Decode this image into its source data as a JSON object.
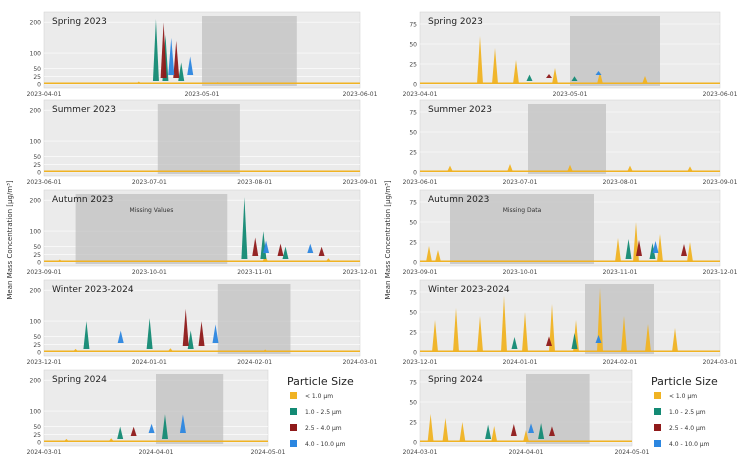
{
  "legend": {
    "title": "Particle Size",
    "items": [
      {
        "label": "< 1.0 µm",
        "color": "#f0b323"
      },
      {
        "label": "1.0 - 2.5 µm",
        "color": "#138a74"
      },
      {
        "label": "2.5 - 4.0 µm",
        "color": "#8f1a1a"
      },
      {
        "label": "4.0 - 10.0 µm",
        "color": "#2b86e0"
      }
    ]
  },
  "ylabel": "Mean Mass Concentration [µg/m³]",
  "chart_data": [
    {
      "type": "area",
      "panel": "left",
      "title": "Spring 2023",
      "ylim": [
        0,
        220
      ],
      "yticks": [
        0,
        25,
        50,
        100,
        200
      ],
      "xticks": [
        "2023-04-01",
        "2023-05-01",
        "2023-06-01"
      ],
      "shaded_range": [
        0.5,
        0.8
      ],
      "annotation": "",
      "series_peaks": [
        {
          "name": "< 1.0 µm",
          "peaks": [
            [
              0.3,
              8
            ],
            [
              0.55,
              6
            ],
            [
              0.8,
              5
            ]
          ]
        },
        {
          "name": "1.0 - 2.5 µm",
          "peaks": [
            [
              0.34,
              200
            ],
            [
              0.37,
              150
            ],
            [
              0.42,
              60
            ]
          ]
        },
        {
          "name": "2.5 - 4.0 µm",
          "peaks": [
            [
              0.35,
              180
            ],
            [
              0.39,
              120
            ]
          ]
        },
        {
          "name": "4.0 - 10.0 µm",
          "peaks": [
            [
              0.36,
              120
            ],
            [
              0.42,
              60
            ]
          ]
        }
      ]
    },
    {
      "type": "area",
      "panel": "left",
      "title": "Summer 2023",
      "ylim": [
        0,
        220
      ],
      "yticks": [
        0,
        25,
        50,
        100,
        200
      ],
      "xticks": [
        "2023-06-01",
        "2023-07-01",
        "2023-08-01",
        "2023-09-01"
      ],
      "shaded_range": [
        0.36,
        0.62
      ],
      "annotation": "",
      "series_peaks": [
        {
          "name": "< 1.0 µm",
          "peaks": [
            [
              0.2,
              5
            ],
            [
              0.5,
              6
            ],
            [
              0.8,
              4
            ]
          ]
        },
        {
          "name": "1.0 - 2.5 µm",
          "peaks": []
        },
        {
          "name": "2.5 - 4.0 µm",
          "peaks": []
        },
        {
          "name": "4.0 - 10.0 µm",
          "peaks": []
        }
      ]
    },
    {
      "type": "area",
      "panel": "left",
      "title": "Autumn 2023",
      "ylim": [
        0,
        220
      ],
      "yticks": [
        0,
        25,
        50,
        100,
        200
      ],
      "xticks": [
        "2023-09-01",
        "2023-10-01",
        "2023-11-01",
        "2023-12-01"
      ],
      "shaded_range": [
        0.1,
        0.58
      ],
      "annotation": "Missing Values",
      "series_peaks": [
        {
          "name": "< 1.0 µm",
          "peaks": [
            [
              0.05,
              8
            ],
            [
              0.7,
              20
            ],
            [
              0.9,
              12
            ]
          ]
        },
        {
          "name": "1.0 - 2.5 µm",
          "peaks": [
            [
              0.62,
              200
            ],
            [
              0.68,
              90
            ],
            [
              0.75,
              40
            ]
          ]
        },
        {
          "name": "2.5 - 4.0 µm",
          "peaks": [
            [
              0.64,
              60
            ],
            [
              0.72,
              40
            ],
            [
              0.85,
              30
            ]
          ]
        },
        {
          "name": "4.0 - 10.0 µm",
          "peaks": [
            [
              0.66,
              40
            ],
            [
              0.8,
              30
            ]
          ]
        }
      ]
    },
    {
      "type": "area",
      "panel": "left",
      "title": "Winter 2023-2024",
      "ylim": [
        0,
        220
      ],
      "yticks": [
        0,
        25,
        50,
        100,
        200
      ],
      "xticks": [
        "2023-12-01",
        "2024-01-01",
        "2024-02-01",
        "2024-03-01"
      ],
      "shaded_range": [
        0.55,
        0.78
      ],
      "annotation": "",
      "series_peaks": [
        {
          "name": "< 1.0 µm",
          "peaks": [
            [
              0.1,
              10
            ],
            [
              0.4,
              12
            ],
            [
              0.7,
              8
            ]
          ]
        },
        {
          "name": "1.0 - 2.5 µm",
          "peaks": [
            [
              0.12,
              90
            ],
            [
              0.32,
              100
            ],
            [
              0.45,
              60
            ]
          ]
        },
        {
          "name": "2.5 - 4.0 µm",
          "peaks": [
            [
              0.42,
              120
            ],
            [
              0.47,
              80
            ]
          ]
        },
        {
          "name": "4.0 - 10.0 µm",
          "peaks": [
            [
              0.2,
              40
            ],
            [
              0.5,
              60
            ]
          ]
        }
      ]
    },
    {
      "type": "area",
      "panel": "left",
      "title": "Spring 2024",
      "ylim": [
        0,
        220
      ],
      "yticks": [
        0,
        25,
        50,
        100,
        200
      ],
      "xticks": [
        "2024-03-01",
        "2024-04-01",
        "2024-05-01"
      ],
      "shaded_range": [
        0.5,
        0.8
      ],
      "annotation": "",
      "series_peaks": [
        {
          "name": "< 1.0 µm",
          "peaks": [
            [
              0.1,
              10
            ],
            [
              0.3,
              12
            ]
          ]
        },
        {
          "name": "1.0 - 2.5 µm",
          "peaks": [
            [
              0.32,
              40
            ],
            [
              0.52,
              80
            ]
          ]
        },
        {
          "name": "2.5 - 4.0 µm",
          "peaks": [
            [
              0.36,
              30
            ]
          ]
        },
        {
          "name": "4.0 - 10.0 µm",
          "peaks": [
            [
              0.42,
              30
            ],
            [
              0.56,
              60
            ]
          ]
        }
      ]
    },
    {
      "type": "area",
      "panel": "right",
      "title": "Spring 2023",
      "ylim": [
        0,
        85
      ],
      "yticks": [
        0,
        25,
        50,
        75
      ],
      "xticks": [
        "2023-04-01",
        "2023-05-01",
        "2023-06-01"
      ],
      "shaded_range": [
        0.5,
        0.8
      ],
      "annotation": "",
      "series_peaks": [
        {
          "name": "< 1.0 µm",
          "peaks": [
            [
              0.2,
              60
            ],
            [
              0.25,
              45
            ],
            [
              0.32,
              30
            ],
            [
              0.45,
              20
            ],
            [
              0.6,
              15
            ],
            [
              0.75,
              10
            ]
          ]
        },
        {
          "name": "1.0 - 2.5 µm",
          "peaks": [
            [
              0.35,
              8
            ],
            [
              0.5,
              6
            ]
          ]
        },
        {
          "name": "2.5 - 4.0 µm",
          "peaks": [
            [
              0.4,
              5
            ]
          ]
        },
        {
          "name": "4.0 - 10.0 µm",
          "peaks": [
            [
              0.55,
              5
            ]
          ]
        }
      ]
    },
    {
      "type": "area",
      "panel": "right",
      "title": "Summer 2023",
      "ylim": [
        0,
        85
      ],
      "yticks": [
        0,
        25,
        50,
        75
      ],
      "xticks": [
        "2023-06-01",
        "2023-07-01",
        "2023-08-01",
        "2023-09-01"
      ],
      "shaded_range": [
        0.36,
        0.62
      ],
      "annotation": "",
      "series_peaks": [
        {
          "name": "< 1.0 µm",
          "peaks": [
            [
              0.1,
              8
            ],
            [
              0.3,
              10
            ],
            [
              0.5,
              9
            ],
            [
              0.7,
              8
            ],
            [
              0.9,
              7
            ]
          ]
        },
        {
          "name": "1.0 - 2.5 µm",
          "peaks": []
        },
        {
          "name": "2.5 - 4.0 µm",
          "peaks": []
        },
        {
          "name": "4.0 - 10.0 µm",
          "peaks": []
        }
      ]
    },
    {
      "type": "area",
      "panel": "right",
      "title": "Autumn 2023",
      "ylim": [
        0,
        85
      ],
      "yticks": [
        0,
        25,
        50,
        75
      ],
      "xticks": [
        "2023-09-01",
        "2023-10-01",
        "2023-11-01",
        "2023-12-01"
      ],
      "shaded_range": [
        0.1,
        0.58
      ],
      "annotation": "Missing Data",
      "series_peaks": [
        {
          "name": "< 1.0 µm",
          "peaks": [
            [
              0.03,
              20
            ],
            [
              0.06,
              15
            ],
            [
              0.66,
              30
            ],
            [
              0.72,
              50
            ],
            [
              0.8,
              35
            ],
            [
              0.9,
              25
            ]
          ]
        },
        {
          "name": "1.0 - 2.5 µm",
          "peaks": [
            [
              0.68,
              25
            ],
            [
              0.76,
              20
            ]
          ]
        },
        {
          "name": "2.5 - 4.0 µm",
          "peaks": [
            [
              0.7,
              20
            ],
            [
              0.85,
              15
            ]
          ]
        },
        {
          "name": "4.0 - 10.0 µm",
          "peaks": [
            [
              0.74,
              15
            ]
          ]
        }
      ]
    },
    {
      "type": "area",
      "panel": "right",
      "title": "Winter 2023-2024",
      "ylim": [
        0,
        85
      ],
      "yticks": [
        0,
        25,
        50,
        75
      ],
      "xticks": [
        "2023-12-01",
        "2024-01-01",
        "2024-02-01",
        "2024-03-01"
      ],
      "shaded_range": [
        0.55,
        0.78
      ],
      "annotation": "",
      "series_peaks": [
        {
          "name": "< 1.0 µm",
          "peaks": [
            [
              0.05,
              40
            ],
            [
              0.12,
              55
            ],
            [
              0.2,
              45
            ],
            [
              0.28,
              70
            ],
            [
              0.35,
              50
            ],
            [
              0.44,
              60
            ],
            [
              0.52,
              40
            ],
            [
              0.6,
              80
            ],
            [
              0.68,
              45
            ],
            [
              0.76,
              35
            ],
            [
              0.85,
              30
            ]
          ]
        },
        {
          "name": "1.0 - 2.5 µm",
          "peaks": [
            [
              0.3,
              15
            ],
            [
              0.5,
              20
            ]
          ]
        },
        {
          "name": "2.5 - 4.0 µm",
          "peaks": [
            [
              0.4,
              12
            ]
          ]
        },
        {
          "name": "4.0 - 10.0 µm",
          "peaks": [
            [
              0.55,
              10
            ]
          ]
        }
      ]
    },
    {
      "type": "area",
      "panel": "right",
      "title": "Spring 2024",
      "ylim": [
        0,
        85
      ],
      "yticks": [
        0,
        25,
        50,
        75
      ],
      "xticks": [
        "2024-03-01",
        "2024-04-01",
        "2024-05-01"
      ],
      "shaded_range": [
        0.5,
        0.8
      ],
      "annotation": "",
      "series_peaks": [
        {
          "name": "< 1.0 µm",
          "peaks": [
            [
              0.05,
              35
            ],
            [
              0.12,
              30
            ],
            [
              0.2,
              25
            ],
            [
              0.35,
              20
            ],
            [
              0.5,
              15
            ]
          ]
        },
        {
          "name": "1.0 - 2.5 µm",
          "peaks": [
            [
              0.3,
              18
            ],
            [
              0.55,
              20
            ]
          ]
        },
        {
          "name": "2.5 - 4.0 µm",
          "peaks": [
            [
              0.4,
              15
            ],
            [
              0.58,
              12
            ]
          ]
        },
        {
          "name": "4.0 - 10.0 µm",
          "peaks": [
            [
              0.46,
              12
            ]
          ]
        }
      ]
    }
  ]
}
